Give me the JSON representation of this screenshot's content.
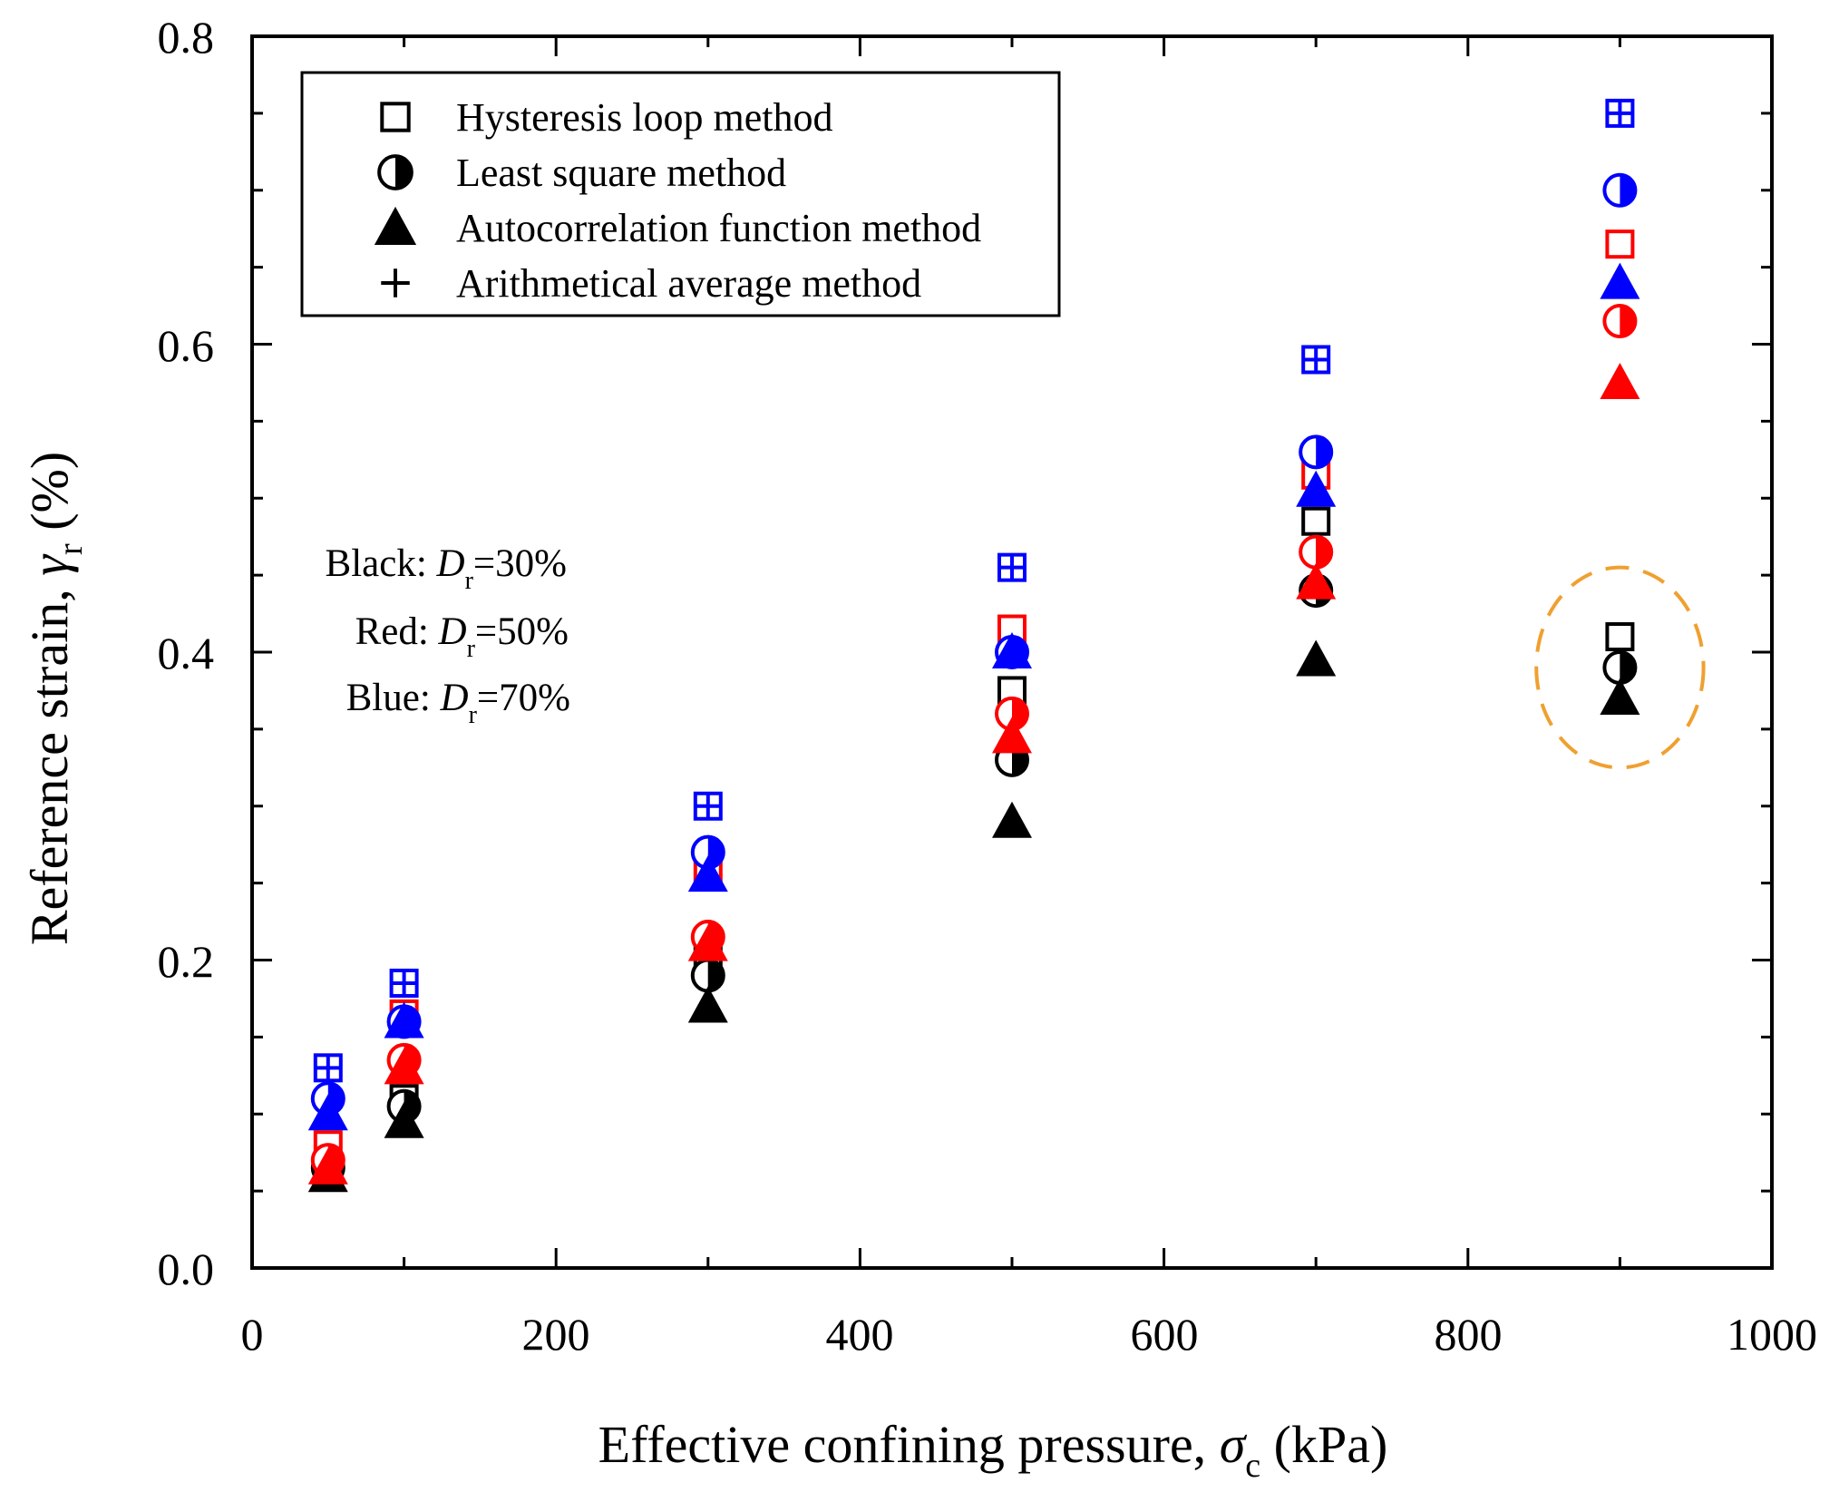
{
  "chart_data": {
    "type": "scatter",
    "title": "",
    "xlabel": {
      "main": "Effective confining pressure, ",
      "symbol": "σ",
      "sub": "c",
      "unit": " (kPa)"
    },
    "ylabel": {
      "main": "Reference strain, ",
      "symbol": "γ",
      "sub": "r",
      "unit": " (%)"
    },
    "xlim": [
      0,
      1000
    ],
    "ylim": [
      0,
      0.8
    ],
    "x_ticks": [
      "0",
      "200",
      "400",
      "600",
      "800",
      "1000"
    ],
    "y_ticks": [
      "0.0",
      "0.2",
      "0.4",
      "0.6",
      "0.8"
    ],
    "x_tick_values": [
      0,
      200,
      400,
      600,
      800,
      1000
    ],
    "y_tick_values": [
      0,
      0.2,
      0.4,
      0.6,
      0.8
    ],
    "x": [
      50,
      100,
      300,
      500,
      700,
      900
    ],
    "colors": {
      "black": "#000000",
      "red": "#ff0000",
      "blue": "#0000ff",
      "highlight": "#f0a030"
    },
    "legend": {
      "placement": "top-left",
      "entries": [
        {
          "marker": "square",
          "label": "Hysteresis loop method"
        },
        {
          "marker": "half-circle",
          "label": "Least square method"
        },
        {
          "marker": "triangle",
          "label": "Autocorrelation function method"
        },
        {
          "marker": "plus",
          "label": "Arithmetical average method"
        }
      ]
    },
    "density_notes": [
      {
        "prefix": "Black: ",
        "symbol": "D",
        "sub": "r",
        "value": "=30%"
      },
      {
        "prefix": "Red: ",
        "symbol": "D",
        "sub": "r",
        "value": "=50%"
      },
      {
        "prefix": "Blue: ",
        "symbol": "D",
        "sub": "r",
        "value": "=70%"
      }
    ],
    "series": [
      {
        "name": "Dr=30% Hysteresis loop method",
        "group": "black",
        "marker": "square",
        "values": [
          0.065,
          0.11,
          0.205,
          0.375,
          0.485,
          0.41
        ]
      },
      {
        "name": "Dr=30% Least square method",
        "group": "black",
        "marker": "half-circle",
        "values": [
          0.065,
          0.105,
          0.19,
          0.33,
          0.44,
          0.39
        ]
      },
      {
        "name": "Dr=30% Autocorrelation function method",
        "group": "black",
        "marker": "triangle",
        "values": [
          0.06,
          0.095,
          0.17,
          0.29,
          0.395,
          0.37
        ]
      },
      {
        "name": "Dr=30% Arithmetical average method",
        "group": "black",
        "marker": "plus",
        "values": [
          0.065,
          0.105,
          0.19,
          0.33,
          0.44,
          0.39
        ]
      },
      {
        "name": "Dr=50% Hysteresis loop method",
        "group": "red",
        "marker": "square",
        "values": [
          0.08,
          0.165,
          0.26,
          0.415,
          0.515,
          0.665
        ]
      },
      {
        "name": "Dr=50% Least square method",
        "group": "red",
        "marker": "half-circle",
        "values": [
          0.07,
          0.135,
          0.215,
          0.36,
          0.465,
          0.615
        ]
      },
      {
        "name": "Dr=50% Autocorrelation function method",
        "group": "red",
        "marker": "triangle",
        "values": [
          0.065,
          0.13,
          0.21,
          0.345,
          0.445,
          0.575
        ]
      },
      {
        "name": "Dr=50% Arithmetical average method",
        "group": "red",
        "marker": "plus",
        "values": [
          0.07,
          0.135,
          0.215,
          0.36,
          0.465,
          0.615
        ]
      },
      {
        "name": "Dr=70% Hysteresis loop method",
        "group": "blue",
        "marker": "square",
        "values": [
          0.13,
          0.185,
          0.3,
          0.455,
          0.59,
          0.75
        ]
      },
      {
        "name": "Dr=70% Least square method",
        "group": "blue",
        "marker": "half-circle",
        "values": [
          0.11,
          0.16,
          0.27,
          0.4,
          0.53,
          0.7
        ]
      },
      {
        "name": "Dr=70% Autocorrelation function method",
        "group": "blue",
        "marker": "triangle",
        "values": [
          0.1,
          0.16,
          0.255,
          0.4,
          0.505,
          0.64
        ]
      },
      {
        "name": "Dr=70% Arithmetical average method",
        "group": "blue",
        "marker": "plus",
        "values": [
          0.13,
          0.185,
          0.3,
          0.455,
          0.59,
          0.75
        ]
      }
    ],
    "annotations": [
      {
        "type": "dashed-circle",
        "color": "highlight",
        "center": [
          900,
          0.39
        ],
        "x_radius": 55,
        "y_radius": 0.065
      }
    ]
  }
}
